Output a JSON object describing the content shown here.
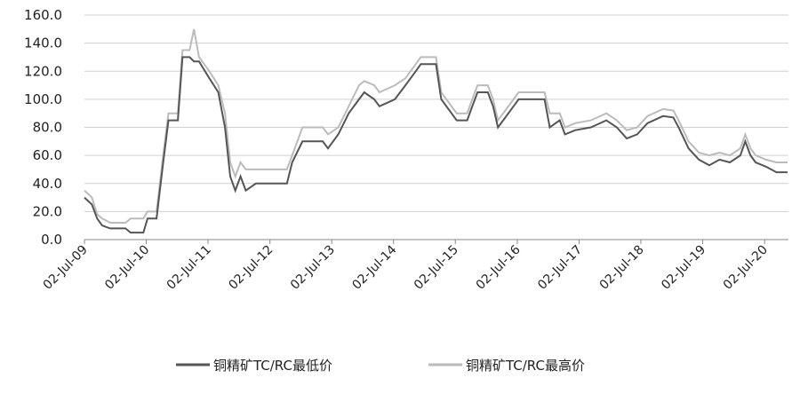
{
  "chart_data": {
    "type": "line",
    "x": [
      "2009-07-02",
      "2009-08-15",
      "2009-09-15",
      "2009-10-15",
      "2009-12-01",
      "2010-03-01",
      "2010-04-01",
      "2010-06-15",
      "2010-07-10",
      "2010-09-01",
      "2010-10-10",
      "2010-11-10",
      "2011-01-05",
      "2011-02-01",
      "2011-03-15",
      "2011-04-10",
      "2011-05-10",
      "2011-07-10",
      "2011-09-01",
      "2011-10-10",
      "2011-11-10",
      "2011-12-10",
      "2012-01-10",
      "2012-02-10",
      "2012-04-10",
      "2012-10-10",
      "2012-11-10",
      "2013-01-10",
      "2013-05-10",
      "2013-06-10",
      "2013-08-10",
      "2013-10-10",
      "2013-12-10",
      "2014-01-10",
      "2014-03-10",
      "2014-04-10",
      "2014-07-10",
      "2014-09-10",
      "2014-11-10",
      "2014-12-10",
      "2015-03-10",
      "2015-04-10",
      "2015-06-10",
      "2015-07-10",
      "2015-09-10",
      "2015-10-10",
      "2015-11-10",
      "2016-01-10",
      "2016-02-10",
      "2016-03-10",
      "2016-04-10",
      "2016-06-10",
      "2016-07-10",
      "2016-12-10",
      "2017-01-10",
      "2017-03-10",
      "2017-04-10",
      "2017-06-10",
      "2017-09-10",
      "2017-12-10",
      "2018-02-10",
      "2018-04-10",
      "2018-06-10",
      "2018-08-10",
      "2018-11-10",
      "2019-01-10",
      "2019-02-10",
      "2019-04-10",
      "2019-06-10",
      "2019-08-10",
      "2019-10-10",
      "2019-12-10",
      "2020-02-10",
      "2020-03-10",
      "2020-04-10",
      "2020-05-10",
      "2020-07-10",
      "2020-09-10",
      "2020-11-15"
    ],
    "series": [
      {
        "name": "铜精矿TC/RC最低价",
        "color": "#555555",
        "values": [
          30,
          25,
          15,
          10,
          8,
          8,
          5,
          5,
          15,
          15,
          55,
          85,
          85,
          130,
          130,
          127,
          127,
          115,
          105,
          80,
          45,
          35,
          45,
          35,
          40,
          40,
          55,
          70,
          70,
          65,
          75,
          90,
          100,
          105,
          100,
          95,
          100,
          110,
          120,
          125,
          125,
          100,
          90,
          85,
          85,
          95,
          105,
          105,
          95,
          80,
          85,
          95,
          100,
          100,
          80,
          85,
          75,
          78,
          80,
          85,
          80,
          72,
          75,
          83,
          88,
          87,
          80,
          65,
          57,
          53,
          57,
          55,
          60,
          70,
          60,
          55,
          52,
          48,
          48
        ]
      },
      {
        "name": "铜精矿TC/RC最高价",
        "color": "#bbbbbb",
        "values": [
          35,
          30,
          18,
          15,
          12,
          12,
          15,
          15,
          20,
          20,
          60,
          90,
          90,
          135,
          135,
          150,
          130,
          120,
          110,
          90,
          55,
          45,
          55,
          50,
          50,
          50,
          60,
          80,
          80,
          75,
          80,
          95,
          110,
          113,
          110,
          105,
          110,
          115,
          125,
          130,
          130,
          105,
          95,
          90,
          90,
          100,
          110,
          110,
          100,
          85,
          90,
          100,
          105,
          105,
          90,
          90,
          80,
          83,
          85,
          90,
          85,
          78,
          80,
          88,
          93,
          92,
          85,
          70,
          62,
          60,
          62,
          60,
          65,
          75,
          65,
          60,
          57,
          55,
          55
        ]
      }
    ],
    "xlim": [
      "2009-07-02",
      "2020-11-20"
    ],
    "xticks": [
      {
        "value": "2009-07-02",
        "label": "02-Jul-09"
      },
      {
        "value": "2010-07-02",
        "label": "02-Jul-10"
      },
      {
        "value": "2011-07-02",
        "label": "02-Jul-11"
      },
      {
        "value": "2012-07-02",
        "label": "02-Jul-12"
      },
      {
        "value": "2013-07-02",
        "label": "02-Jul-13"
      },
      {
        "value": "2014-07-02",
        "label": "02-Jul-14"
      },
      {
        "value": "2015-07-02",
        "label": "02-Jul-15"
      },
      {
        "value": "2016-07-02",
        "label": "02-Jul-16"
      },
      {
        "value": "2017-07-02",
        "label": "02-Jul-17"
      },
      {
        "value": "2018-07-02",
        "label": "02-Jul-18"
      },
      {
        "value": "2019-07-02",
        "label": "02-Jul-19"
      },
      {
        "value": "2020-07-02",
        "label": "02-Jul-20"
      }
    ],
    "ylim": [
      0,
      160
    ],
    "yticks": [
      {
        "value": 0,
        "label": "0.0"
      },
      {
        "value": 20,
        "label": "20.0"
      },
      {
        "value": 40,
        "label": "40.0"
      },
      {
        "value": 60,
        "label": "60.0"
      },
      {
        "value": 80,
        "label": "80.0"
      },
      {
        "value": 100,
        "label": "100.0"
      },
      {
        "value": 120,
        "label": "120.0"
      },
      {
        "value": 140,
        "label": "140.0"
      },
      {
        "value": 160,
        "label": "160.0"
      }
    ],
    "grid": true,
    "legend": "bottom"
  }
}
